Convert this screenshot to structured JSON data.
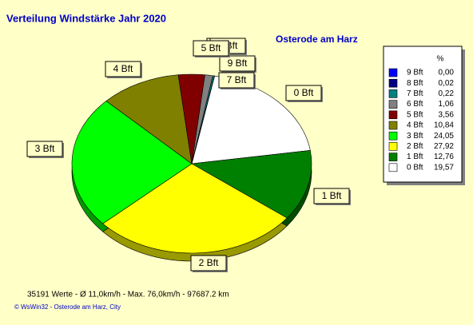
{
  "chart_data": {
    "type": "pie",
    "title": "Verteilung Windstärke  Jahr 2020",
    "subtitle": "Osterode am Harz",
    "legend_header": "%",
    "categories": [
      "9 Bft",
      "8 Bft",
      "7 Bft",
      "6 Bft",
      "5 Bft",
      "4 Bft",
      "3 Bft",
      "2 Bft",
      "1 Bft",
      "0 Bft"
    ],
    "values": [
      0.0,
      0.02,
      0.22,
      1.06,
      3.56,
      10.84,
      24.05,
      27.92,
      12.76,
      19.57
    ],
    "value_labels": [
      "0,00",
      "0,02",
      "0,22",
      "1,06",
      "3,56",
      "10,84",
      "24,05",
      "27,92",
      "12,76",
      "19,57"
    ],
    "colors": [
      "#0000ff",
      "#000080",
      "#008080",
      "#808080",
      "#800000",
      "#808000",
      "#00ff00",
      "#ffff00",
      "#008000",
      "#ffffff"
    ],
    "footer": "35191 Werte   -   Ø 11,0km/h  -  Max. 76,0km/h   -   97687.2 km",
    "credit": "© WsWin32  -  Osterode am Harz, City"
  }
}
